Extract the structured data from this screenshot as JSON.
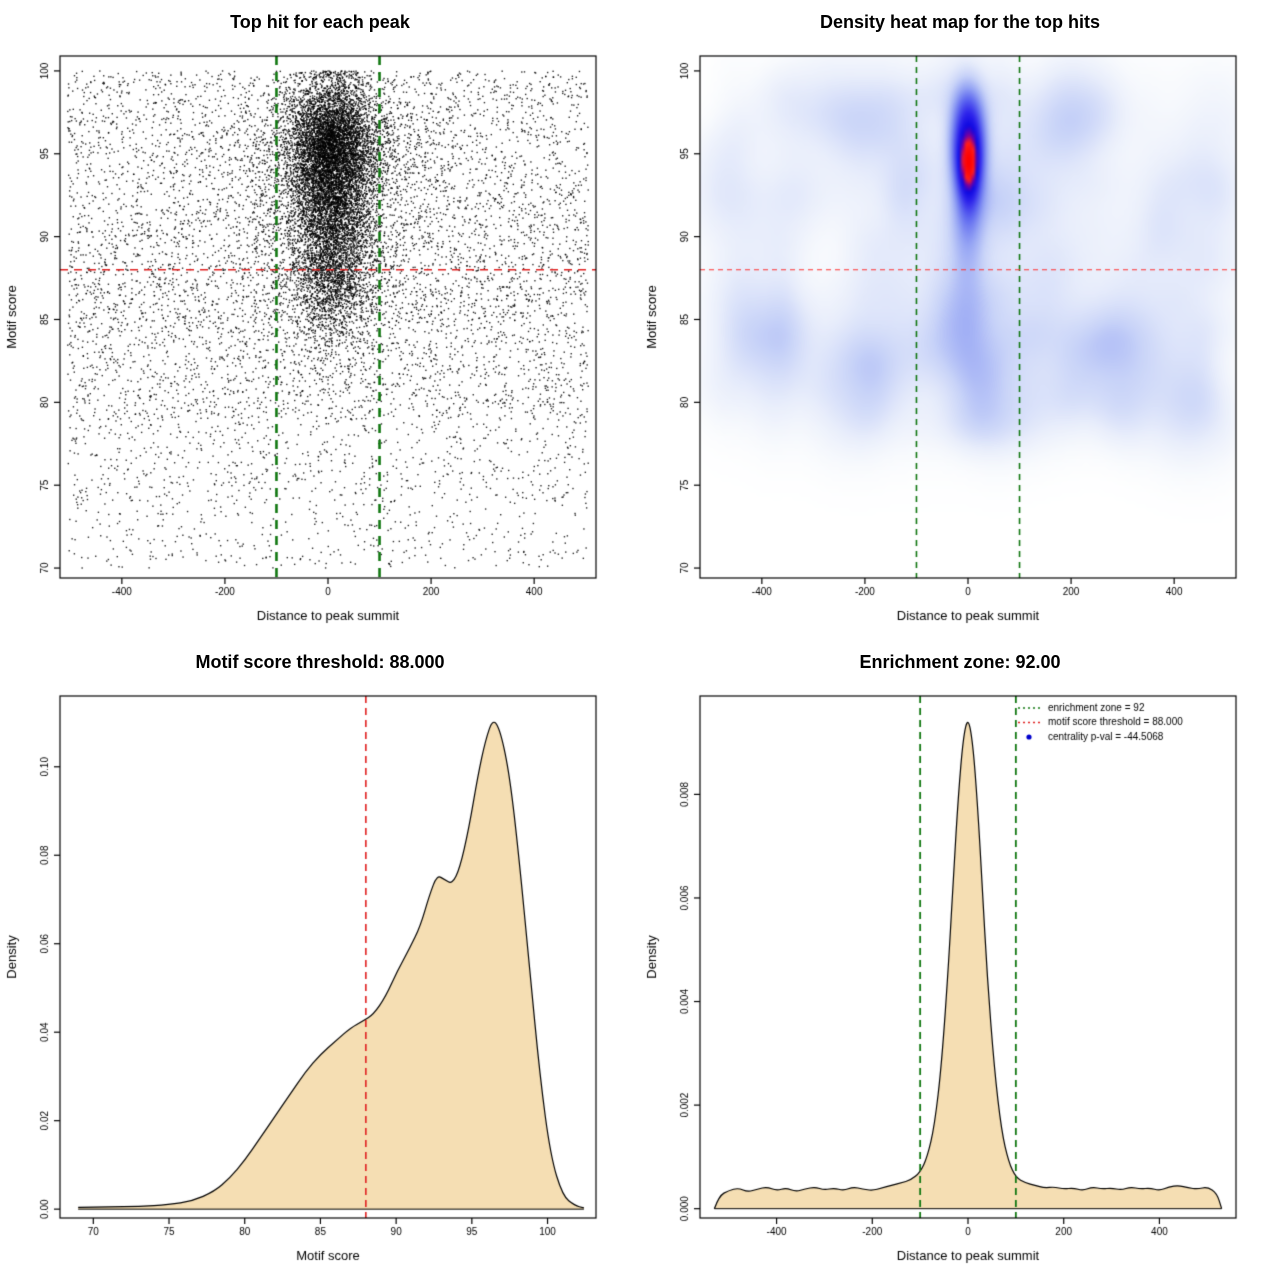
{
  "figure": {
    "background": "#ffffff"
  },
  "chart_data": [
    {
      "id": "top-hit-scatter",
      "type": "scatter",
      "title": "Top hit for each peak",
      "xlabel": "Distance to peak summit",
      "ylabel": "Motif score",
      "xlim": [
        -520,
        520
      ],
      "ylim": [
        69.4,
        100.9
      ],
      "xticks": [
        [
          -400,
          "-400"
        ],
        [
          -200,
          "-200"
        ],
        [
          0,
          "0"
        ],
        [
          200,
          "200"
        ],
        [
          400,
          "400"
        ]
      ],
      "yticks": [
        [
          70,
          "70"
        ],
        [
          75,
          "75"
        ],
        [
          80,
          "80"
        ],
        [
          85,
          "85"
        ],
        [
          90,
          "90"
        ],
        [
          95,
          "95"
        ],
        [
          100,
          "100"
        ]
      ],
      "point_color": "#000000",
      "point_size": 1.4,
      "point_alpha": 0.85,
      "hline": {
        "y": 88,
        "color": "#e02020",
        "width": 1.6,
        "dash": [
          8,
          6
        ]
      },
      "vlines": {
        "x": [
          -100,
          100
        ],
        "color": "#117711",
        "width": 2.6,
        "dash": [
          9,
          7
        ]
      },
      "distribution": {
        "seed": 20240817,
        "background": {
          "count": 7000,
          "x_range": [
            -505,
            505
          ],
          "y_bands": [
            [
              92,
              100,
              0.3
            ],
            [
              85,
              92,
              0.33
            ],
            [
              79,
              85,
              0.22
            ],
            [
              74,
              79,
              0.1
            ],
            [
              70,
              74,
              0.05
            ]
          ]
        },
        "cluster": {
          "count": 11000,
          "x_center": 8,
          "x_sds": [
            [
              40,
              0.8
            ],
            [
              95,
              0.2
            ]
          ],
          "y_components": [
            [
              95.5,
              2.0,
              0.55
            ],
            [
              91.5,
              2.4,
              0.27
            ],
            [
              87.5,
              2.4,
              0.18
            ]
          ],
          "y_clip": [
            70,
            100
          ]
        }
      }
    },
    {
      "id": "top-hit-density-heatmap",
      "type": "heatmap",
      "title": "Density heat map for the top hits",
      "xlabel": "Distance to peak summit",
      "ylabel": "Motif score",
      "xlim": [
        -520,
        520
      ],
      "ylim": [
        69.4,
        100.9
      ],
      "xticks": [
        [
          -400,
          "-400"
        ],
        [
          -200,
          "-200"
        ],
        [
          0,
          "0"
        ],
        [
          200,
          "200"
        ],
        [
          400,
          "400"
        ]
      ],
      "yticks": [
        [
          70,
          "70"
        ],
        [
          75,
          "75"
        ],
        [
          80,
          "80"
        ],
        [
          85,
          "85"
        ],
        [
          90,
          "90"
        ],
        [
          95,
          "95"
        ],
        [
          100,
          "100"
        ]
      ],
      "hline": {
        "y": 88,
        "color": "#ff3030",
        "width": 1.2,
        "dash": [
          5,
          4
        ]
      },
      "vlines": {
        "x": [
          -100,
          100
        ],
        "color": "#117711",
        "width": 1.6,
        "dash": [
          6,
          5
        ]
      },
      "grid": [
        150,
        140
      ],
      "core_blobs": [
        [
          0,
          96,
          30,
          2.6,
          1.0,
          3
        ],
        [
          2,
          94.5,
          20,
          2.2,
          0.75,
          2
        ],
        [
          0,
          92.5,
          22,
          2.8,
          0.45,
          2
        ],
        [
          0,
          89.5,
          26,
          3.2,
          0.22,
          2
        ],
        [
          0,
          86,
          30,
          4,
          0.12,
          2
        ],
        [
          0,
          94,
          45,
          6,
          0.18,
          2
        ]
      ],
      "noise": {
        "seed": 99,
        "count": 300,
        "x_range": [
          -512,
          512
        ],
        "y_bands": [
          [
            78,
            86,
            0.5
          ],
          [
            86,
            94,
            0.3
          ],
          [
            94,
            100,
            0.2
          ]
        ],
        "sx": [
          25,
          70
        ],
        "sy": [
          1.0,
          2.6
        ],
        "amp": [
          0.03,
          0.09
        ]
      },
      "colormap": [
        [
          0,
          [
            255,
            255,
            255
          ]
        ],
        [
          0.04,
          [
            248,
            250,
            253
          ]
        ],
        [
          0.12,
          [
            233,
            238,
            251
          ]
        ],
        [
          0.25,
          [
            200,
            211,
            248
          ]
        ],
        [
          0.4,
          [
            150,
            165,
            244
          ]
        ],
        [
          0.55,
          [
            95,
            105,
            240
          ]
        ],
        [
          0.7,
          [
            45,
            35,
            235
          ]
        ],
        [
          0.8,
          [
            15,
            8,
            225
          ]
        ],
        [
          0.87,
          [
            120,
            0,
            160
          ]
        ],
        [
          0.92,
          [
            255,
            30,
            30
          ]
        ],
        [
          1,
          [
            255,
            0,
            0
          ]
        ]
      ]
    },
    {
      "id": "motif-score-density",
      "type": "area",
      "title": "Motif score threshold: 88.000",
      "xlabel": "Motif score",
      "ylabel": "Density",
      "xlim": [
        67.8,
        103.2
      ],
      "ylim": [
        -0.002,
        0.116
      ],
      "xticks": [
        [
          70,
          "70"
        ],
        [
          75,
          "75"
        ],
        [
          80,
          "80"
        ],
        [
          85,
          "85"
        ],
        [
          90,
          "90"
        ],
        [
          95,
          "95"
        ],
        [
          100,
          "100"
        ]
      ],
      "yticks": [
        [
          0,
          "0.00"
        ],
        [
          0.02,
          "0.02"
        ],
        [
          0.04,
          "0.04"
        ],
        [
          0.06,
          "0.06"
        ],
        [
          0.08,
          "0.08"
        ],
        [
          0.1,
          "0.10"
        ]
      ],
      "fill": "#f5deb3",
      "stroke": "#000000",
      "vlines": {
        "x": [
          88
        ],
        "color": "#e02020",
        "width": 1.6,
        "dash": [
          7,
          5
        ]
      },
      "curve": {
        "x": [
          69,
          71,
          73,
          75,
          76.5,
          78,
          79,
          80,
          81,
          82,
          83,
          84,
          85,
          86,
          87,
          87.8,
          88.5,
          89.3,
          90.1,
          90.9,
          91.6,
          92.2,
          92.7,
          93.2,
          93.7,
          94.2,
          94.8,
          95.4,
          95.9,
          96.4,
          96.9,
          97.5,
          98.1,
          98.8,
          99.5,
          100.2,
          101,
          101.8,
          102.4
        ],
        "y": [
          0.0004,
          0.0005,
          0.0006,
          0.001,
          0.0018,
          0.004,
          0.007,
          0.011,
          0.016,
          0.021,
          0.026,
          0.031,
          0.035,
          0.038,
          0.041,
          0.0425,
          0.044,
          0.048,
          0.054,
          0.059,
          0.064,
          0.071,
          0.0755,
          0.0745,
          0.0735,
          0.077,
          0.086,
          0.098,
          0.106,
          0.111,
          0.108,
          0.098,
          0.08,
          0.055,
          0.03,
          0.012,
          0.003,
          0.0008,
          0.0003
        ]
      }
    },
    {
      "id": "distance-density",
      "type": "area",
      "title": "Enrichment zone: 92.00",
      "xlabel": "Distance to peak summit",
      "ylabel": "Density",
      "xlim": [
        -560,
        560
      ],
      "ylim": [
        -0.00018,
        0.0099
      ],
      "xticks": [
        [
          -400,
          "-400"
        ],
        [
          -200,
          "-200"
        ],
        [
          0,
          "0"
        ],
        [
          200,
          "200"
        ],
        [
          400,
          "400"
        ]
      ],
      "yticks": [
        [
          0,
          "0.000"
        ],
        [
          0.002,
          "0.002"
        ],
        [
          0.004,
          "0.004"
        ],
        [
          0.006,
          "0.006"
        ],
        [
          0.008,
          "0.008"
        ]
      ],
      "fill": "#f5deb3",
      "stroke": "#000000",
      "vlines": {
        "x": [
          -100,
          100
        ],
        "color": "#117711",
        "width": 1.8,
        "dash": [
          7,
          5
        ]
      },
      "legend": {
        "items": [
          {
            "type": "line",
            "color": "#117711",
            "dash": [
              2,
              3
            ],
            "label": "enrichment zone = 92"
          },
          {
            "type": "line",
            "color": "#e02020",
            "dash": [
              2,
              3
            ],
            "label": "motif score threshold = 88.000"
          },
          {
            "type": "point",
            "color": "#0000cd",
            "label": "centrality p-val = -44.5068"
          }
        ]
      },
      "curve": {
        "x": [
          -530,
          -520,
          -500,
          -480,
          -460,
          -440,
          -420,
          -400,
          -380,
          -360,
          -340,
          -320,
          -300,
          -280,
          -260,
          -240,
          -220,
          -200,
          -180,
          -160,
          -140,
          -120,
          -100,
          -85,
          -70,
          -55,
          -40,
          -30,
          -20,
          -10,
          0,
          10,
          20,
          30,
          40,
          55,
          70,
          85,
          100,
          120,
          140,
          160,
          180,
          200,
          220,
          240,
          260,
          280,
          300,
          320,
          340,
          360,
          380,
          400,
          420,
          440,
          460,
          480,
          500,
          520,
          530
        ],
        "y": [
          0,
          0.00025,
          0.00035,
          0.0004,
          0.00032,
          0.00038,
          0.00042,
          0.00035,
          0.0004,
          0.00033,
          0.00038,
          0.00042,
          0.00036,
          0.0004,
          0.00035,
          0.00042,
          0.00038,
          0.00035,
          0.0004,
          0.00045,
          0.0005,
          0.00055,
          0.0007,
          0.001,
          0.0016,
          0.0028,
          0.0048,
          0.0065,
          0.008,
          0.0091,
          0.0095,
          0.009,
          0.0078,
          0.0062,
          0.0045,
          0.0027,
          0.0015,
          0.0009,
          0.0006,
          0.0005,
          0.00045,
          0.0004,
          0.00042,
          0.00038,
          0.0004,
          0.00035,
          0.00042,
          0.00038,
          0.0004,
          0.00036,
          0.00042,
          0.00038,
          0.0004,
          0.00035,
          0.00042,
          0.00045,
          0.0004,
          0.00038,
          0.00042,
          0.0003,
          0
        ]
      }
    }
  ]
}
